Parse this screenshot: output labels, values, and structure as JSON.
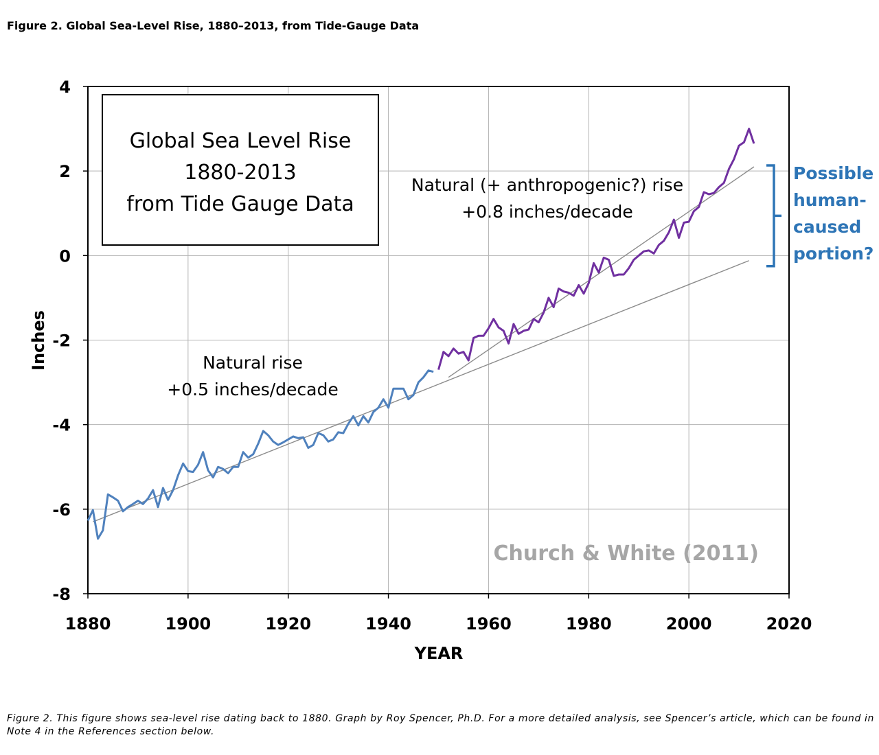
{
  "figure": {
    "heading": "Figure 2. Global Sea-Level Rise, 1880–2013, from Tide-Gauge Data",
    "caption_line1": "Figure 2. This figure shows sea-level rise dating back to 1880. Graph by Roy Spencer, Ph.D. For a more detailed analysis, see Spencer’s article, which can be found in",
    "caption_line2": "Note 4 in the References section below."
  },
  "chart_data": {
    "type": "line",
    "title_lines": [
      "Global Sea Level Rise",
      "1880-2013",
      "from Tide Gauge Data"
    ],
    "xlabel": "YEAR",
    "ylabel": "Inches",
    "xlim": [
      1880,
      2020
    ],
    "ylim": [
      -8,
      4
    ],
    "x_ticks": [
      "1880",
      "1900",
      "1920",
      "1940",
      "1960",
      "1980",
      "2000",
      "2020"
    ],
    "y_ticks": [
      "4",
      "2",
      "0",
      "-2",
      "-4",
      "-6",
      "-8"
    ],
    "grid": true,
    "colors": {
      "early": "#4f81bd",
      "late": "#7030a0",
      "trend": "#8c8c8c",
      "annotation": "#2e75b6",
      "source": "#a6a6a6"
    },
    "series": [
      {
        "period": "1880-1949",
        "x": [
          1880,
          1881,
          1882,
          1883,
          1884,
          1885,
          1886,
          1887,
          1888,
          1889,
          1890,
          1891,
          1892,
          1893,
          1894,
          1895,
          1896,
          1897,
          1898,
          1899,
          1900,
          1901,
          1902,
          1903,
          1904,
          1905,
          1906,
          1907,
          1908,
          1909,
          1910,
          1911,
          1912,
          1913,
          1914,
          1915,
          1916,
          1917,
          1918,
          1919,
          1920,
          1921,
          1922,
          1923,
          1924,
          1925,
          1926,
          1927,
          1928,
          1929,
          1930,
          1931,
          1932,
          1933,
          1934,
          1935,
          1936,
          1937,
          1938,
          1939,
          1940,
          1941,
          1942,
          1943,
          1944,
          1945,
          1946,
          1947,
          1948,
          1949
        ],
        "values": [
          -6.27,
          -6.02,
          -6.7,
          -6.5,
          -5.65,
          -5.72,
          -5.8,
          -6.05,
          -5.95,
          -5.88,
          -5.8,
          -5.88,
          -5.75,
          -5.55,
          -5.95,
          -5.5,
          -5.78,
          -5.55,
          -5.2,
          -4.92,
          -5.1,
          -5.12,
          -4.95,
          -4.65,
          -5.08,
          -5.25,
          -5.0,
          -5.05,
          -5.15,
          -5.0,
          -5.0,
          -4.65,
          -4.78,
          -4.7,
          -4.45,
          -4.15,
          -4.25,
          -4.4,
          -4.48,
          -4.42,
          -4.35,
          -4.28,
          -4.32,
          -4.3,
          -4.55,
          -4.48,
          -4.2,
          -4.25,
          -4.4,
          -4.35,
          -4.18,
          -4.2,
          -3.98,
          -3.8,
          -4.02,
          -3.8,
          -3.95,
          -3.7,
          -3.6,
          -3.4,
          -3.6,
          -3.15,
          -3.15,
          -3.15,
          -3.4,
          -3.3,
          -3.0,
          -2.88,
          -2.72,
          -2.75
        ]
      },
      {
        "period": "1950-2013",
        "x": [
          1950,
          1951,
          1952,
          1953,
          1954,
          1955,
          1956,
          1957,
          1958,
          1959,
          1960,
          1961,
          1962,
          1963,
          1964,
          1965,
          1966,
          1967,
          1968,
          1969,
          1970,
          1971,
          1972,
          1973,
          1974,
          1975,
          1976,
          1977,
          1978,
          1979,
          1980,
          1981,
          1982,
          1983,
          1984,
          1985,
          1986,
          1987,
          1988,
          1989,
          1990,
          1991,
          1992,
          1993,
          1994,
          1995,
          1996,
          1997,
          1998,
          1999,
          2000,
          2001,
          2002,
          2003,
          2004,
          2005,
          2006,
          2007,
          2008,
          2009,
          2010,
          2011,
          2012,
          2013
        ],
        "values": [
          -2.7,
          -2.28,
          -2.38,
          -2.2,
          -2.32,
          -2.28,
          -2.48,
          -1.95,
          -1.9,
          -1.9,
          -1.72,
          -1.5,
          -1.7,
          -1.78,
          -2.08,
          -1.62,
          -1.85,
          -1.78,
          -1.75,
          -1.5,
          -1.58,
          -1.35,
          -1.0,
          -1.22,
          -0.78,
          -0.85,
          -0.88,
          -0.95,
          -0.7,
          -0.9,
          -0.65,
          -0.18,
          -0.4,
          -0.05,
          -0.1,
          -0.48,
          -0.45,
          -0.45,
          -0.3,
          -0.1,
          0.0,
          0.1,
          0.12,
          0.05,
          0.25,
          0.35,
          0.55,
          0.85,
          0.42,
          0.78,
          0.8,
          1.05,
          1.15,
          1.5,
          1.45,
          1.48,
          1.62,
          1.72,
          2.05,
          2.28,
          2.6,
          2.68,
          3.0,
          2.65
        ]
      }
    ],
    "trend_lines": [
      {
        "label_lines": [
          "Natural rise",
          "+0.5 inches/decade"
        ],
        "x": [
          1881,
          2012
        ],
        "values": [
          -6.3,
          -0.12
        ]
      },
      {
        "label_lines": [
          "Natural (+ anthropogenic?) rise",
          "+0.8 inches/decade"
        ],
        "x": [
          1952,
          2013
        ],
        "values": [
          -2.88,
          2.1
        ]
      }
    ],
    "bracket": {
      "label_lines": [
        "Possible",
        "human-",
        "caused",
        "portion?"
      ],
      "y_range": [
        -0.12,
        2.1
      ]
    },
    "source_label": "Church & White (2011)"
  }
}
